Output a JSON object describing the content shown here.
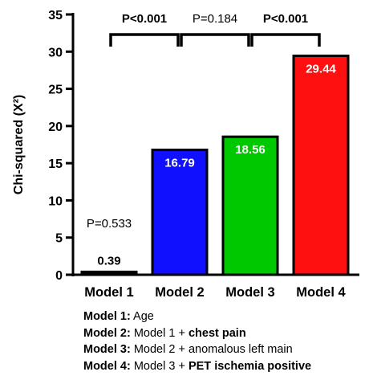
{
  "chart_data": {
    "type": "bar",
    "categories": [
      "Model 1",
      "Model 2",
      "Model 3",
      "Model 4"
    ],
    "values": [
      0.39,
      16.79,
      18.56,
      29.44
    ],
    "data_labels": [
      "0.39",
      "16.79",
      "18.56",
      "29.44"
    ],
    "colors": [
      "#000000",
      "#1010ff",
      "#00c800",
      "#ff1010"
    ],
    "title": "",
    "xlabel": "",
    "ylabel": "Chi-squared (X²)",
    "ylim": [
      0,
      35
    ],
    "yticks": [
      0,
      5,
      10,
      15,
      20,
      25,
      30,
      35
    ],
    "grid": false,
    "annotations": [
      {
        "text": "P=0.533",
        "category": "Model 1",
        "bold": false
      },
      {
        "text": "P<0.001",
        "from": "Model 1",
        "to": "Model 2",
        "bold": true
      },
      {
        "text": "P=0.184",
        "from": "Model 2",
        "to": "Model 3",
        "bold": false
      },
      {
        "text": "P<0.001",
        "from": "Model 3",
        "to": "Model 4",
        "bold": true
      }
    ]
  },
  "legend": [
    {
      "key": "Model 1:",
      "plain": "Age",
      "bold": ""
    },
    {
      "key": "Model 2:",
      "plain": "Model 1 + ",
      "bold": "chest pain"
    },
    {
      "key": "Model 3:",
      "plain": "Model 2 + anomalous left main",
      "bold": ""
    },
    {
      "key": "Model 4:",
      "plain": "Model 3 + ",
      "bold": "PET ischemia positive"
    }
  ]
}
